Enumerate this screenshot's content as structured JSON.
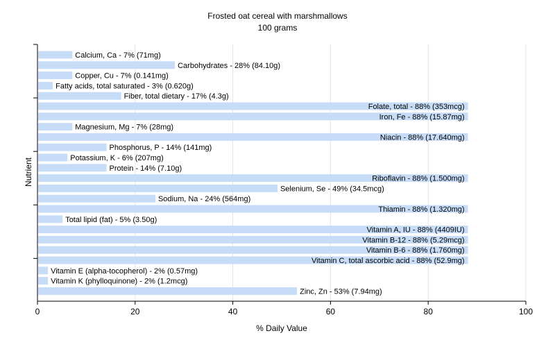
{
  "chart_data": {
    "type": "bar",
    "orientation": "horizontal",
    "title": "Frosted oat cereal with marshmallows",
    "subtitle": "100 grams",
    "xlabel": "% Daily Value",
    "ylabel": "Nutrient",
    "xlim": [
      0,
      100
    ],
    "xticks": [
      "0",
      "20",
      "40",
      "60",
      "80",
      "100"
    ],
    "grid": "vertical",
    "bar_color": "#c6dcf7",
    "categories": [
      "Calcium, Ca",
      "Carbohydrates",
      "Copper, Cu",
      "Fatty acids, total saturated",
      "Fiber, total dietary",
      "Folate, total",
      "Iron, Fe",
      "Magnesium, Mg",
      "Niacin",
      "Phosphorus, P",
      "Potassium, K",
      "Protein",
      "Riboflavin",
      "Selenium, Se",
      "Sodium, Na",
      "Thiamin",
      "Total lipid (fat)",
      "Vitamin A, IU",
      "Vitamin B-12",
      "Vitamin B-6",
      "Vitamin C, total ascorbic acid",
      "Vitamin E (alpha-tocopherol)",
      "Vitamin K (phylloquinone)",
      "Zinc, Zn"
    ],
    "values": [
      7,
      28,
      7,
      3,
      17,
      88,
      88,
      7,
      88,
      14,
      6,
      14,
      88,
      49,
      24,
      88,
      5,
      88,
      88,
      88,
      88,
      2,
      2,
      53
    ],
    "labels": [
      "Calcium, Ca - 7% (71mg)",
      "Carbohydrates - 28% (84.10g)",
      "Copper, Cu - 7% (0.141mg)",
      "Fatty acids, total saturated - 3% (0.620g)",
      "Fiber, total dietary - 17% (4.3g)",
      "Folate, total - 88% (353mcg)",
      "Iron, Fe - 88% (15.87mg)",
      "Magnesium, Mg - 7% (28mg)",
      "Niacin - 88% (17.640mg)",
      "Phosphorus, P - 14% (141mg)",
      "Potassium, K - 6% (207mg)",
      "Protein - 14% (7.10g)",
      "Riboflavin - 88% (1.500mg)",
      "Selenium, Se - 49% (34.5mcg)",
      "Sodium, Na - 24% (564mg)",
      "Thiamin - 88% (1.320mg)",
      "Total lipid (fat) - 5% (3.50g)",
      "Vitamin A, IU - 88% (4409IU)",
      "Vitamin B-12 - 88% (5.29mcg)",
      "Vitamin B-6 - 88% (1.760mg)",
      "Vitamin C, total ascorbic acid - 88% (52.9mg)",
      "Vitamin E (alpha-tocopherol) - 2% (0.57mg)",
      "Vitamin K (phylloquinone) - 2% (1.2mcg)",
      "Zinc, Zn - 53% (7.94mg)"
    ]
  }
}
